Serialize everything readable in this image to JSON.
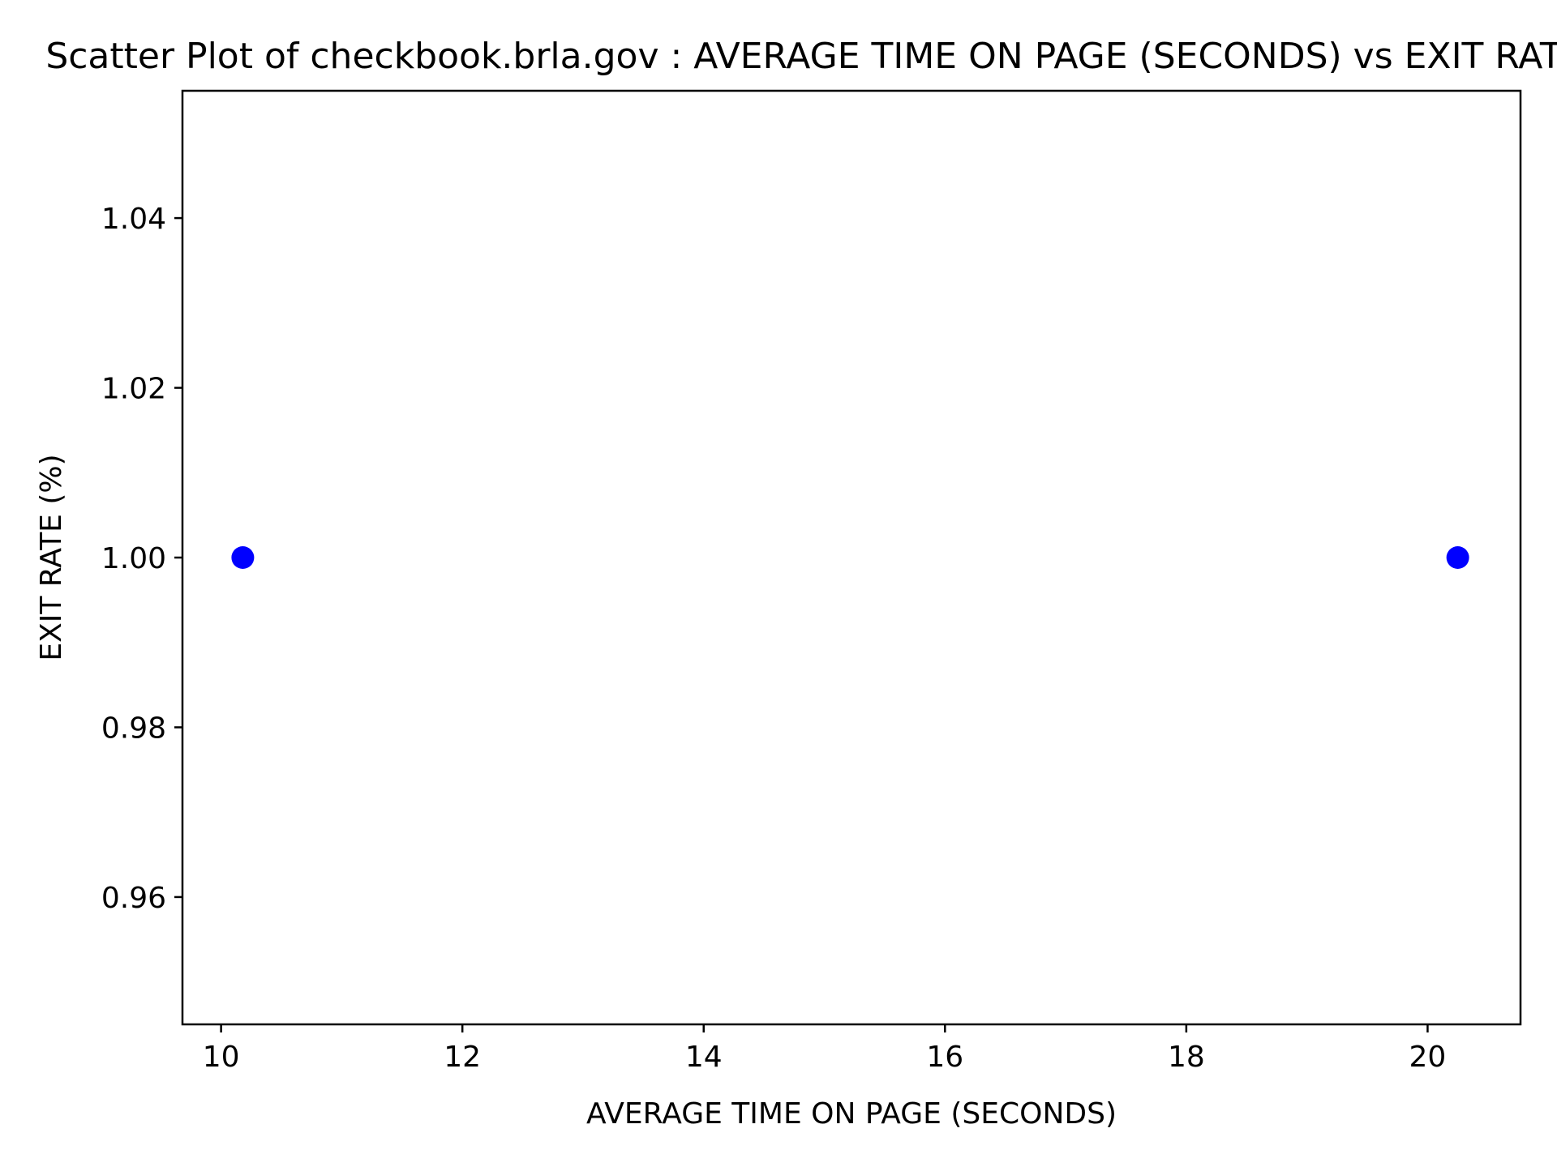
{
  "chart_data": {
    "type": "scatter",
    "title": "Scatter Plot of checkbook.brla.gov : AVERAGE TIME ON PAGE (SECONDS) vs EXIT RATE (%)",
    "xlabel": "AVERAGE TIME ON PAGE (SECONDS)",
    "ylabel": "EXIT RATE (%)",
    "xlim": [
      9.68,
      20.77
    ],
    "ylim": [
      0.945,
      1.055
    ],
    "xticks": [
      10,
      12,
      14,
      16,
      18,
      20
    ],
    "yticks": [
      0.96,
      0.98,
      1.0,
      1.02,
      1.04
    ],
    "xtick_labels": [
      "10",
      "12",
      "14",
      "16",
      "18",
      "20"
    ],
    "ytick_labels": [
      "0.96",
      "0.98",
      "1.00",
      "1.02",
      "1.04"
    ],
    "grid": false,
    "legend": "none",
    "series": [
      {
        "color": "#0000ff",
        "points": [
          {
            "x": 10.18,
            "y": 1.0
          },
          {
            "x": 20.25,
            "y": 1.0
          }
        ]
      }
    ]
  }
}
